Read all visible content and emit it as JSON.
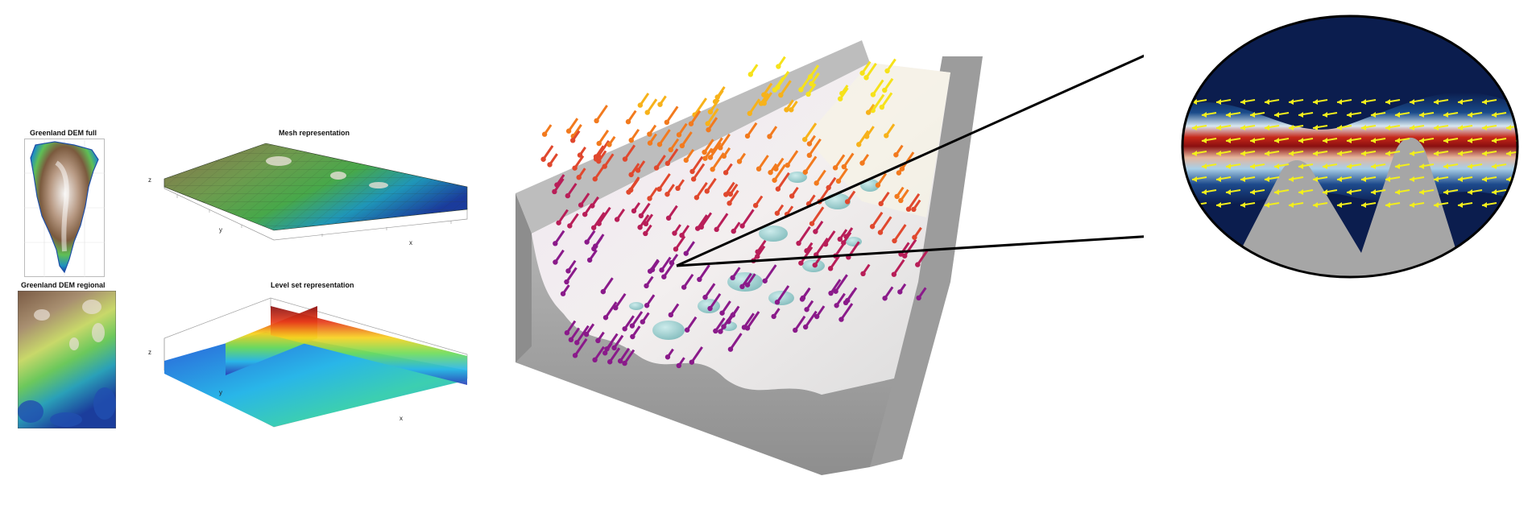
{
  "panels": {
    "dem_full": {
      "title": "Greenland DEM full"
    },
    "dem_regional": {
      "title": "Greenland DEM regional"
    },
    "mesh": {
      "title": "Mesh representation",
      "axes": {
        "x": "x",
        "y": "y",
        "z": "z"
      }
    },
    "levelset": {
      "title": "Level set representation",
      "axes": {
        "x": "x",
        "y": "y",
        "z": "z"
      }
    }
  },
  "main_figure": {
    "name": "glacier-bed-flow-3d"
  },
  "zoom_inset": {
    "name": "velocity-field-inset"
  },
  "colors": {
    "block_gray": "#a9a9a9",
    "ice_surface": "#ece8ec",
    "bubble_teal": "#8fc6c6",
    "inset_background": "#0b1d4e",
    "inset_arrow": "#f2ee1c",
    "credit_text": "#4a97b0"
  }
}
